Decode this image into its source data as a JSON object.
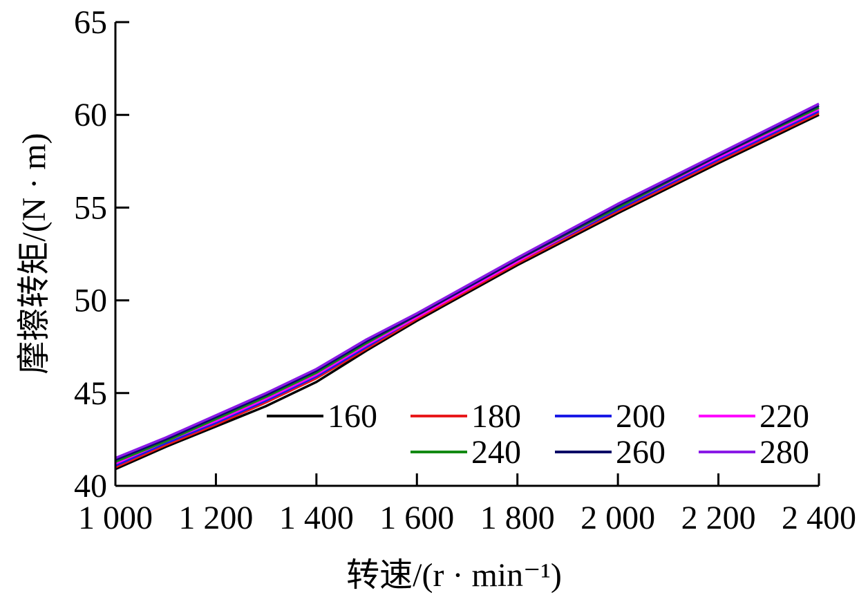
{
  "chart_data": {
    "type": "line",
    "xlabel": "转速/(r · min⁻¹)",
    "ylabel": "摩擦转矩/(N · m)",
    "xlim": [
      1000,
      2400
    ],
    "ylim": [
      40,
      65
    ],
    "x_ticks": [
      1000,
      1200,
      1400,
      1600,
      1800,
      2000,
      2200,
      2400
    ],
    "x_tick_labels": [
      "1 000",
      "1 200",
      "1 400",
      "1 600",
      "1 800",
      "2 000",
      "2 200",
      "2 400"
    ],
    "y_ticks": [
      40,
      45,
      50,
      55,
      60,
      65
    ],
    "y_tick_labels": [
      "40",
      "45",
      "50",
      "55",
      "60",
      "65"
    ],
    "grid": false,
    "legend_position": "lower-right",
    "series": [
      {
        "name": "160",
        "color": "#000000",
        "x": [
          1000,
          1100,
          1200,
          1300,
          1400,
          1500,
          1600,
          1800,
          2000,
          2200,
          2400
        ],
        "y": [
          40.9,
          42.1,
          43.2,
          44.3,
          45.6,
          47.3,
          48.9,
          51.9,
          54.7,
          57.4,
          60.0
        ]
      },
      {
        "name": "180",
        "color": "#e8191b",
        "x": [
          1000,
          1100,
          1200,
          1300,
          1400,
          1500,
          1600,
          1800,
          2000,
          2200,
          2400
        ],
        "y": [
          41.0,
          42.2,
          43.3,
          44.5,
          45.8,
          47.4,
          49.0,
          52.0,
          54.8,
          57.5,
          60.1
        ]
      },
      {
        "name": "200",
        "color": "#1a1ae6",
        "x": [
          1000,
          1100,
          1200,
          1300,
          1400,
          1500,
          1600,
          1800,
          2000,
          2200,
          2400
        ],
        "y": [
          41.1,
          42.3,
          43.4,
          44.6,
          45.9,
          47.5,
          49.1,
          52.1,
          54.9,
          57.6,
          60.2
        ]
      },
      {
        "name": "220",
        "color": "#ff00ff",
        "x": [
          1000,
          1100,
          1200,
          1300,
          1400,
          1500,
          1600,
          1800,
          2000,
          2200,
          2400
        ],
        "y": [
          41.2,
          42.4,
          43.5,
          44.7,
          46.0,
          47.6,
          49.1,
          52.1,
          55.0,
          57.7,
          60.3
        ]
      },
      {
        "name": "240",
        "color": "#138a13",
        "x": [
          1000,
          1100,
          1200,
          1300,
          1400,
          1500,
          1600,
          1800,
          2000,
          2200,
          2400
        ],
        "y": [
          41.3,
          42.4,
          43.6,
          44.8,
          46.1,
          47.7,
          49.2,
          52.2,
          55.0,
          57.8,
          60.4
        ]
      },
      {
        "name": "260",
        "color": "#0a0a66",
        "x": [
          1000,
          1100,
          1200,
          1300,
          1400,
          1500,
          1600,
          1800,
          2000,
          2200,
          2400
        ],
        "y": [
          41.4,
          42.5,
          43.7,
          44.9,
          46.2,
          47.8,
          49.2,
          52.2,
          55.1,
          57.8,
          60.5
        ]
      },
      {
        "name": "280",
        "color": "#8a1ae6",
        "x": [
          1000,
          1100,
          1200,
          1300,
          1400,
          1500,
          1600,
          1800,
          2000,
          2200,
          2400
        ],
        "y": [
          41.5,
          42.6,
          43.8,
          45.0,
          46.3,
          47.9,
          49.3,
          52.3,
          55.2,
          57.9,
          60.6
        ]
      }
    ]
  }
}
